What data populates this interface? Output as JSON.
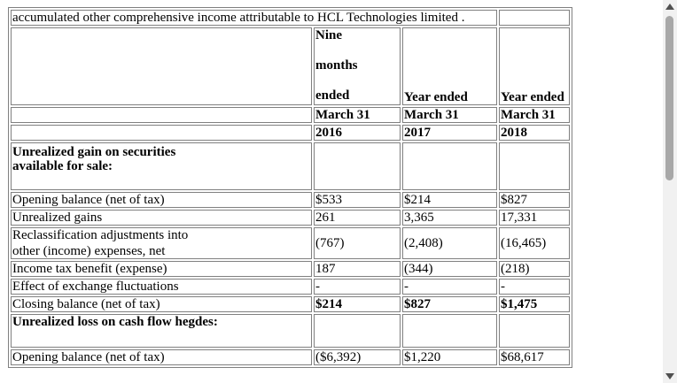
{
  "table": {
    "caption": "accumulated other comprehensive income attributable to HCL Technologies limited .",
    "header": {
      "col1_lines": [
        "Nine",
        "months",
        "ended"
      ],
      "col2": "Year ended",
      "col3": "Year ended",
      "month_row": [
        "March 31",
        "March 31",
        "March 31"
      ],
      "year_row": [
        "2016",
        "2017",
        "2018"
      ]
    },
    "section1": {
      "title_line1": "Unrealized gain on securities",
      "title_line2": "available for sale:",
      "rows": [
        {
          "label": "Opening balance (net of tax)",
          "values": [
            "$533",
            "$214",
            "$827"
          ]
        },
        {
          "label": "Unrealized gains",
          "values": [
            "261",
            "3,365",
            "17,331"
          ]
        },
        {
          "label_line1": "Reclassification adjustments into",
          "label_line2": "other (income) expenses, net",
          "values": [
            "(767)",
            "(2,408)",
            "(16,465)"
          ]
        },
        {
          "label": "Income tax benefit (expense)",
          "values": [
            "187",
            "(344)",
            "(218)"
          ]
        },
        {
          "label": "Effect of exchange fluctuations",
          "values": [
            "-",
            "-",
            "-"
          ]
        },
        {
          "label": "Closing balance (net of tax)",
          "values": [
            "$214",
            "$827",
            "$1,475"
          ]
        }
      ]
    },
    "section2": {
      "title": "Unrealized loss on cash flow hegdes:",
      "rows": [
        {
          "label": "Opening balance (net of tax)",
          "values": [
            "($6,392)",
            "$1,220",
            "$68,617"
          ]
        }
      ]
    }
  },
  "scrollbar": {
    "up_icon": "arrow-up-icon",
    "down_icon": "arrow-down-icon"
  }
}
